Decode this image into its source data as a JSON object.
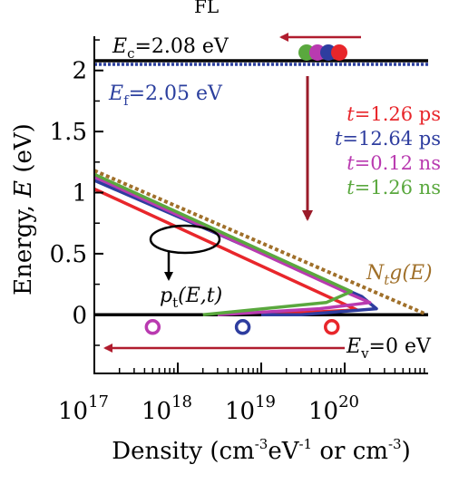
{
  "chart_data": {
    "type": "line",
    "title_fragment": "FL",
    "xlabel": "Density (cm",
    "xlabel_sup1": "-3",
    "xlabel_mid": "eV",
    "xlabel_sup2": "-1",
    "xlabel_tail": " or cm",
    "xlabel_sup3": "-3",
    "xlabel_end": ")",
    "ylabel": "Energy, ",
    "ylabel_italic": "E",
    "ylabel_unit": " (eV)",
    "x_scale": "log",
    "xlim": [
      1e+17,
      1e+21
    ],
    "ylim": [
      -0.48,
      2.28
    ],
    "x_ticks": [
      {
        "value": 1e+17,
        "base": "10",
        "exp": "17"
      },
      {
        "value": 1e+18,
        "base": "10",
        "exp": "18"
      },
      {
        "value": 1e+19,
        "base": "10",
        "exp": "19"
      },
      {
        "value": 1e+20,
        "base": "10",
        "exp": "20"
      }
    ],
    "y_ticks": [
      {
        "value": 0,
        "label": "0"
      },
      {
        "value": 0.5,
        "label": "0.5"
      },
      {
        "value": 1,
        "label": "1"
      },
      {
        "value": 1.5,
        "label": "1.5"
      },
      {
        "value": 2,
        "label": "2"
      }
    ],
    "reference_lines": {
      "conduction_band": {
        "value": 2.08,
        "label": "E",
        "sub": "c",
        "rest": "=2.08 eV",
        "color": "#000000"
      },
      "fermi_level": {
        "value": 2.05,
        "label": "E",
        "sub": "f",
        "rest": "=2.05 eV",
        "color": "#2b3f9e"
      },
      "valence_band": {
        "value": 0,
        "label": "E",
        "sub": "v",
        "rest": "=0 eV",
        "color": "#000000"
      }
    },
    "dos_line": {
      "name_pre": "N",
      "name_sub": "t",
      "name_post": "g(E)",
      "color": "#a0702a",
      "x": [
        1e+17,
        1.2e+21
      ],
      "y": [
        1.18,
        -0.02
      ]
    },
    "series": [
      {
        "name": "t=1.26 ps",
        "name_pre": "t",
        "name_post": "=1.26 ps",
        "color": "#e8262b",
        "x": [
          1e+17,
          1.4e+20,
          1e+19
        ],
        "y": [
          1.03,
          0.04,
          0.0
        ]
      },
      {
        "name": "t=12.64 ps",
        "name_pre": "t",
        "name_post": "=12.64 ps",
        "color": "#2e3d9f",
        "x": [
          1e+17,
          1.6e+20,
          2.4e+20,
          3e+19,
          1e+19
        ],
        "y": [
          1.1,
          0.15,
          0.05,
          0.0,
          0.0
        ]
      },
      {
        "name": "t=0.12 ns",
        "name_pre": "t",
        "name_post": "=0.12 ns",
        "color": "#b93ab0",
        "x": [
          1e+17,
          1.25e+20,
          2e+20,
          5e+19,
          3e+18
        ],
        "y": [
          1.13,
          0.16,
          0.1,
          0.05,
          0.0
        ]
      },
      {
        "name": "t=1.26 ns",
        "name_pre": "t",
        "name_post": "=1.26 ns",
        "color": "#5aa83e",
        "x": [
          1e+17,
          1.2e+20,
          6e+19,
          2e+18
        ],
        "y": [
          1.15,
          0.19,
          0.1,
          0.0
        ]
      }
    ],
    "annotation": {
      "label_pre": "p",
      "label_sub": "t",
      "label_post": "(E,t)"
    },
    "electrons": [
      "#5aa83e",
      "#b93ab0",
      "#2e3d9f",
      "#e8262b"
    ],
    "holes": [
      {
        "x": 5e+17,
        "y": -0.1,
        "color": "#b93ab0"
      },
      {
        "x": 6e+18,
        "y": -0.1,
        "color": "#2e3d9f"
      },
      {
        "x": 7e+19,
        "y": -0.1,
        "color": "#e8262b"
      }
    ],
    "arrow_colors": {
      "time_arrow": "#9b1b2a",
      "electron_arrow": "#b01c2e",
      "hole_arrow": "#b01c2e"
    },
    "grid": false
  }
}
